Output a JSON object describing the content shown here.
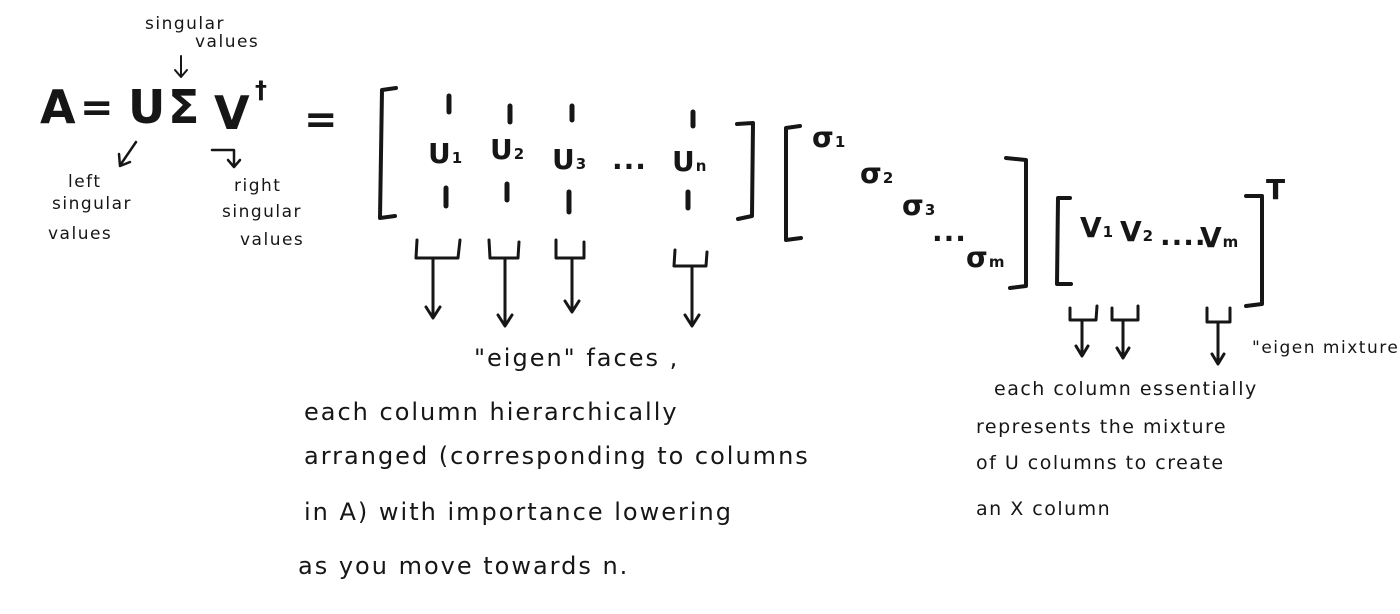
{
  "equation": {
    "A": "A",
    "equals_1": "=",
    "U": "U",
    "Sigma": "Σ",
    "V": "V",
    "dagger": "†",
    "equals_2": "="
  },
  "notes": {
    "singular_values_top": [
      "singular",
      "values"
    ],
    "left_singular": [
      "left",
      "singular",
      "values"
    ],
    "right_singular": [
      "right",
      "singular",
      "values"
    ]
  },
  "matrix_u": {
    "columns": [
      {
        "base": "U",
        "sub": "1"
      },
      {
        "base": "U",
        "sub": "2"
      },
      {
        "base": "U",
        "sub": "3"
      },
      {
        "base": "U",
        "sub": "n"
      }
    ],
    "ellipsis": "..."
  },
  "matrix_sigma": {
    "entries": [
      {
        "base": "σ",
        "sub": "1"
      },
      {
        "base": "σ",
        "sub": "2"
      },
      {
        "base": "σ",
        "sub": "3"
      },
      {
        "base": "σ",
        "sub": "m"
      }
    ],
    "ellipsis": "..."
  },
  "matrix_v": {
    "entries": [
      {
        "base": "V",
        "sub": "1"
      },
      {
        "base": "V",
        "sub": "2"
      },
      {
        "base": "V",
        "sub": "m"
      }
    ],
    "ellipsis": "....",
    "transpose": "T"
  },
  "eigen_faces_note": {
    "heading": "\"eigen\" faces ,",
    "lines": [
      "each column hierarchically",
      "arranged (corresponding to columns",
      "in A) with importance lowering",
      "as you move towards n."
    ]
  },
  "eigen_mixtures_note": {
    "tag": "\"eigen mixtures\"",
    "lines": [
      "each column essentially",
      "represents the mixture",
      "of U columns to create",
      "an X column"
    ]
  }
}
